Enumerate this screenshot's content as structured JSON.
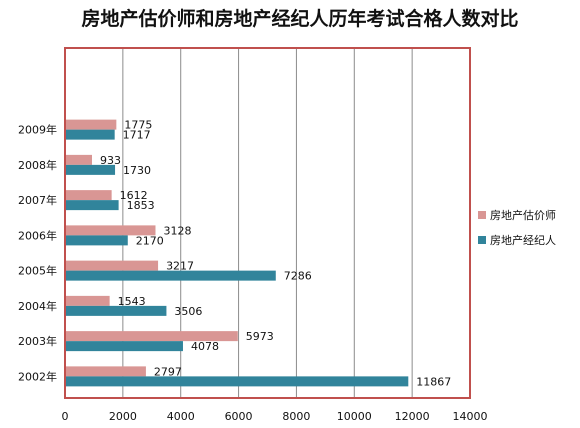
{
  "chart_data": {
    "type": "bar",
    "orientation": "horizontal",
    "title": "房地产估价师和房地产经纪人历年考试合格人数对比",
    "categories": [
      "2002年",
      "2003年",
      "2004年",
      "2005年",
      "2006年",
      "2007年",
      "2008年",
      "2009年"
    ],
    "series": [
      {
        "name": "房地产估价师",
        "color": "#d99694",
        "values": [
          2797,
          5973,
          1543,
          3217,
          3128,
          1612,
          933,
          1775
        ]
      },
      {
        "name": "房地产经纪人",
        "color": "#31849b",
        "values": [
          11867,
          4078,
          3506,
          7286,
          2170,
          1853,
          1730,
          1717
        ]
      }
    ],
    "xlim": [
      0,
      14000
    ],
    "xticks": [
      "0",
      "2000",
      "4000",
      "6000",
      "8000",
      "10000",
      "12000",
      "14000"
    ],
    "grid": "vertical",
    "legend_position": "right",
    "plot_border_color": "#c0504d"
  }
}
